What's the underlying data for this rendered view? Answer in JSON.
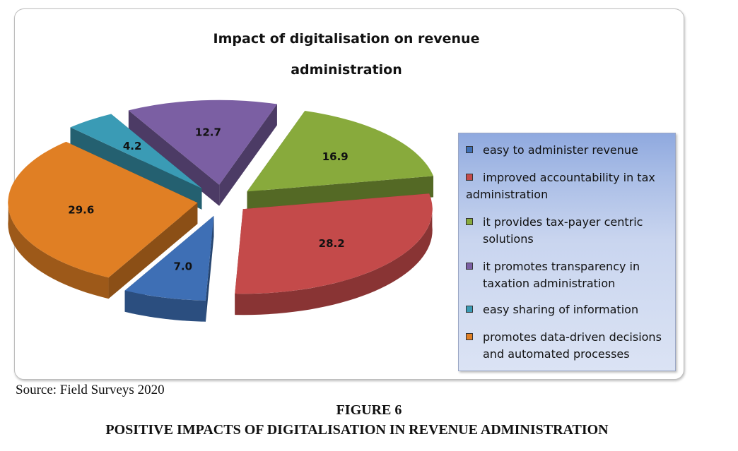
{
  "chart_data": {
    "type": "pie",
    "title_line1": "Impact of digitalisation on revenue",
    "title_line2": "administration",
    "categories": [
      "easy to administer revenue",
      "improved accountability in tax administration",
      "it provides tax-payer centric solutions",
      "it promotes transparency in taxation administration",
      "easy sharing of information",
      "promotes data-driven decisions and automated processes"
    ],
    "values": [
      7.0,
      28.2,
      16.9,
      12.7,
      4.2,
      29.6
    ],
    "value_labels": [
      "7.0",
      "28.2",
      "16.9",
      "12.7",
      "4.2",
      "29.6"
    ],
    "colors": [
      "#3e6fb5",
      "#c44a4a",
      "#88aa3c",
      "#7b5fa3",
      "#3a9bb5",
      "#e07f24"
    ],
    "legend": {
      "position": "right",
      "items": [
        {
          "line1": "easy to administer revenue",
          "line2": ""
        },
        {
          "line1": "improved accountability in tax",
          "line2": "administration"
        },
        {
          "line1": "it provides tax-payer centric",
          "line2": "solutions"
        },
        {
          "line1": "it promotes transparency in",
          "line2": "taxation administration"
        },
        {
          "line1": "easy sharing of information",
          "line2": ""
        },
        {
          "line1": "promotes data-driven decisions",
          "line2": "and automated processes"
        }
      ]
    }
  },
  "source": "Source: Field Surveys 2020",
  "figure_number": "FIGURE 6",
  "figure_title": "POSITIVE IMPACTS OF DIGITALISATION IN REVENUE ADMINISTRATION"
}
